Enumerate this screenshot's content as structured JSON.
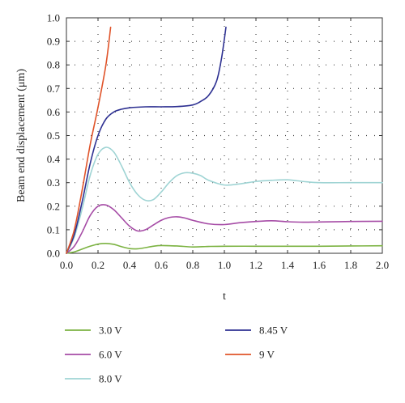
{
  "chart_data": {
    "type": "line",
    "title": "",
    "xlabel": "t",
    "ylabel": "Beam end displacement (μm)",
    "xlim": [
      0.0,
      2.0
    ],
    "ylim": [
      0.0,
      1.0
    ],
    "x_ticks": [
      "0.0",
      "0.2",
      "0.4",
      "0.6",
      "0.8",
      "1.0",
      "1.2",
      "1.4",
      "1.6",
      "1.8",
      "2.0"
    ],
    "y_ticks": [
      "0.0",
      "0.1",
      "0.2",
      "0.3",
      "0.4",
      "0.5",
      "0.6",
      "0.7",
      "0.8",
      "0.9",
      "1.0"
    ],
    "grid": "dotted",
    "legend_position": "below",
    "series": [
      {
        "name": "3.0 V",
        "color": "#7cb342",
        "x": [
          0,
          0.05,
          0.1,
          0.15,
          0.2,
          0.25,
          0.3,
          0.35,
          0.4,
          0.45,
          0.5,
          0.55,
          0.6,
          0.7,
          0.8,
          0.9,
          1.0,
          1.2,
          1.4,
          1.6,
          1.8,
          2.0
        ],
        "y": [
          0,
          0.006,
          0.018,
          0.03,
          0.039,
          0.042,
          0.038,
          0.028,
          0.02,
          0.019,
          0.024,
          0.03,
          0.033,
          0.031,
          0.027,
          0.029,
          0.03,
          0.03,
          0.03,
          0.03,
          0.031,
          0.032
        ]
      },
      {
        "name": "6.0 V",
        "color": "#a64ca6",
        "x": [
          0,
          0.05,
          0.1,
          0.15,
          0.2,
          0.25,
          0.3,
          0.35,
          0.4,
          0.45,
          0.5,
          0.55,
          0.6,
          0.65,
          0.7,
          0.75,
          0.8,
          0.9,
          1.0,
          1.1,
          1.2,
          1.3,
          1.4,
          1.5,
          1.6,
          1.8,
          2.0
        ],
        "y": [
          0,
          0.03,
          0.09,
          0.16,
          0.2,
          0.205,
          0.185,
          0.15,
          0.115,
          0.095,
          0.1,
          0.12,
          0.14,
          0.152,
          0.155,
          0.15,
          0.14,
          0.125,
          0.122,
          0.13,
          0.135,
          0.138,
          0.134,
          0.132,
          0.133,
          0.135,
          0.136
        ]
      },
      {
        "name": "8.0 V",
        "color": "#9fd4d4",
        "x": [
          0,
          0.05,
          0.1,
          0.15,
          0.2,
          0.25,
          0.3,
          0.35,
          0.4,
          0.45,
          0.5,
          0.55,
          0.6,
          0.65,
          0.7,
          0.75,
          0.8,
          0.85,
          0.9,
          1.0,
          1.1,
          1.2,
          1.3,
          1.4,
          1.5,
          1.6,
          1.8,
          2.0
        ],
        "y": [
          0,
          0.07,
          0.19,
          0.33,
          0.42,
          0.45,
          0.43,
          0.37,
          0.3,
          0.25,
          0.225,
          0.228,
          0.26,
          0.3,
          0.33,
          0.342,
          0.34,
          0.33,
          0.31,
          0.29,
          0.295,
          0.305,
          0.31,
          0.312,
          0.305,
          0.3,
          0.3,
          0.3
        ]
      },
      {
        "name": "8.45 V",
        "color": "#2e3192",
        "x": [
          0,
          0.05,
          0.1,
          0.15,
          0.2,
          0.25,
          0.3,
          0.35,
          0.4,
          0.5,
          0.6,
          0.7,
          0.8,
          0.85,
          0.9,
          0.95,
          0.98,
          1.0,
          1.01
        ],
        "y": [
          0,
          0.08,
          0.22,
          0.38,
          0.5,
          0.57,
          0.6,
          0.612,
          0.618,
          0.622,
          0.622,
          0.623,
          0.63,
          0.645,
          0.67,
          0.73,
          0.82,
          0.91,
          0.96
        ]
      },
      {
        "name": "9 V",
        "color": "#e0542a",
        "x": [
          0,
          0.05,
          0.1,
          0.15,
          0.2,
          0.25,
          0.28
        ],
        "y": [
          0,
          0.1,
          0.27,
          0.46,
          0.62,
          0.8,
          0.96
        ]
      }
    ]
  }
}
